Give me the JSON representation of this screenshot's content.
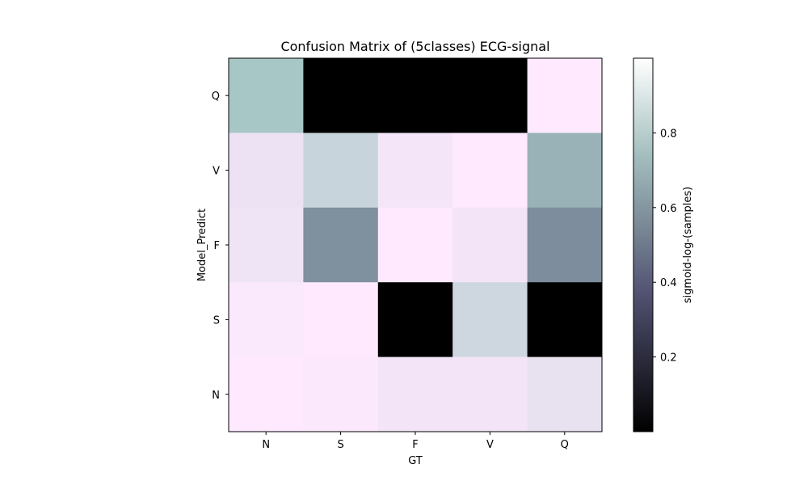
{
  "chart_data": {
    "type": "heatmap",
    "title": "Confusion Matrix of (5classes) ECG-signal",
    "xlabel": "GT",
    "ylabel": "Model_Predict",
    "x_categories": [
      "N",
      "S",
      "F",
      "V",
      "Q"
    ],
    "y_categories": [
      "Q",
      "V",
      "F",
      "S",
      "N"
    ],
    "values": [
      [
        0.75,
        0.0,
        0.0,
        0.0,
        0.998
      ],
      [
        0.945,
        0.84,
        0.97,
        0.998,
        0.68
      ],
      [
        0.955,
        0.57,
        0.998,
        0.965,
        0.56
      ],
      [
        0.985,
        0.998,
        0.0,
        0.86,
        0.0
      ],
      [
        0.998,
        0.99,
        0.965,
        0.965,
        0.935
      ]
    ],
    "colorbar": {
      "label": "sigmoid-log-(samples)",
      "range": [
        0,
        1
      ],
      "ticks": [
        0.2,
        0.4,
        0.6,
        0.8
      ],
      "colormap": "bone"
    },
    "grid": false
  }
}
